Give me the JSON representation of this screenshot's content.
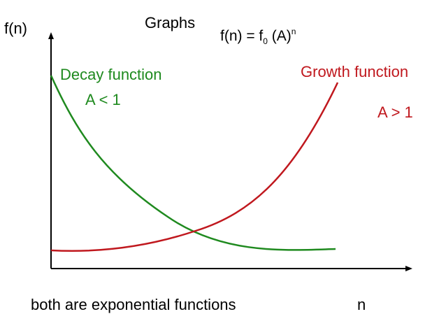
{
  "ylabel": "f(n)",
  "xlabel": "n",
  "title": "Graphs",
  "formula": {
    "prefix": "f(n) = f",
    "subscript": "0",
    "middle": " (A)",
    "superscript": "n"
  },
  "decay": {
    "label": "Decay function",
    "condition": "A < 1",
    "color": "#1f8a1f"
  },
  "growth": {
    "label": "Growth function",
    "condition": "A > 1",
    "color": "#c0181e"
  },
  "caption": "both are exponential functions",
  "colors": {
    "axis": "#000000",
    "text": "#000000"
  }
}
